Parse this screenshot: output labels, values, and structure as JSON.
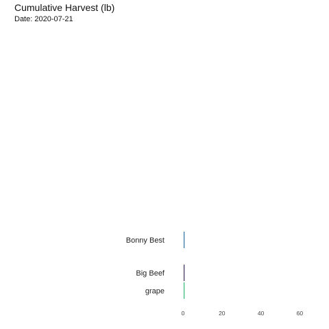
{
  "title": "Cumulative Harvest (lb)",
  "subtitle": "Date: 2020-07-21",
  "chart_data": {
    "type": "bar",
    "orientation": "horizontal",
    "title": "Cumulative Harvest (lb)",
    "subtitle": "Date: 2020-07-21",
    "categories": [
      "Bonny Best",
      "Big Beef",
      "grape"
    ],
    "values": [
      0.4,
      0.25,
      0.2
    ],
    "colors": [
      "#2c6e9e",
      "#3b2d5c",
      "#35b779"
    ],
    "xlim": [
      0,
      70
    ],
    "xticks": [
      0,
      20,
      40,
      60
    ],
    "xlabel": "",
    "ylabel": "",
    "grid": false,
    "legend": "none"
  }
}
